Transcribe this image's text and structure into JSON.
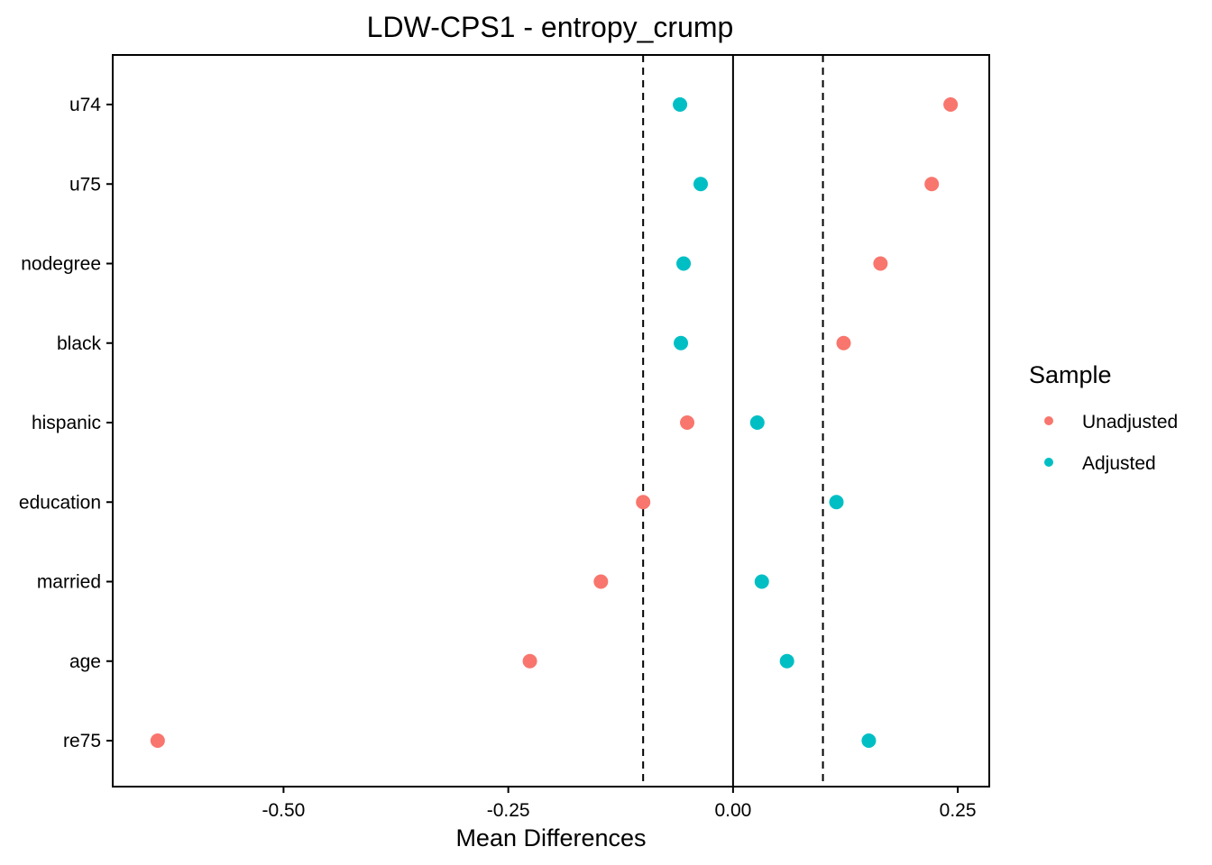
{
  "chart_data": {
    "type": "scatter",
    "title": "LDW-CPS1 - entropy_crump",
    "xlabel": "Mean Differences",
    "ylabel": "",
    "xlim": [
      -0.69,
      0.285
    ],
    "xticks": [
      -0.5,
      -0.25,
      0.0,
      0.25
    ],
    "xtick_labels": [
      "-0.50",
      "-0.25",
      "0.00",
      "0.25"
    ],
    "reference_lines": {
      "solid": 0.0,
      "dashed": [
        -0.1,
        0.1
      ]
    },
    "categories": [
      "u74",
      "u75",
      "nodegree",
      "black",
      "hispanic",
      "education",
      "married",
      "age",
      "re75"
    ],
    "series": [
      {
        "name": "Unadjusted",
        "color": "#F8766D",
        "values": [
          0.242,
          0.221,
          0.164,
          0.123,
          -0.051,
          -0.1,
          -0.147,
          -0.226,
          -0.64
        ]
      },
      {
        "name": "Adjusted",
        "color": "#00BFC4",
        "values": [
          -0.059,
          -0.036,
          -0.055,
          -0.058,
          0.027,
          0.115,
          0.032,
          0.06,
          0.151
        ]
      }
    ],
    "legend": {
      "title": "Sample",
      "position": "right",
      "entries": [
        "Unadjusted",
        "Adjusted"
      ]
    },
    "grid": false
  }
}
